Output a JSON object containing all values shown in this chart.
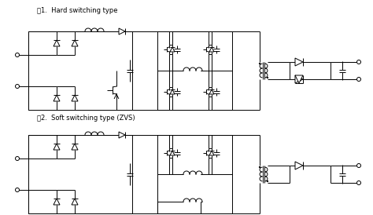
{
  "title1": "図1.  Hard switching type",
  "title2": "図2.  Soft switching type (ZVS)",
  "bg_color": "#ffffff",
  "line_color": "#000000",
  "fig_width": 4.74,
  "fig_height": 2.74,
  "dpi": 100
}
